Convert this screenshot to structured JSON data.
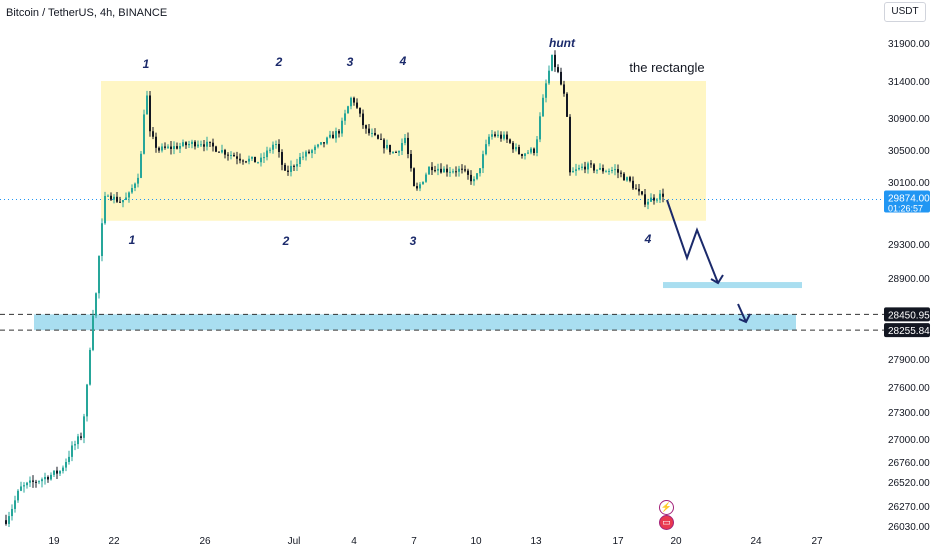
{
  "header": {
    "title": "Bitcoin / TetherUS, 4h, BINANCE",
    "currency": "USDT"
  },
  "icons": {
    "badge_1": "lightning-icon",
    "badge_2": "flag-icon"
  },
  "colors": {
    "up": "#26a69a",
    "rectangle": "#fff6c4",
    "target_zone": "#a9def0",
    "projection_arrow": "#1b2a6b",
    "current_price_tag": "#2196f3",
    "level_tag": "#131722"
  },
  "chart_data": {
    "type": "candlestick",
    "y_ticks": [
      "31900.00",
      "31400.00",
      "30900.00",
      "30500.00",
      "30100.00",
      "29300.00",
      "28900.00",
      "27900.00",
      "27600.00",
      "27300.00",
      "27000.00",
      "26760.00",
      "26520.00",
      "26270.00",
      "26030.00"
    ],
    "x_ticks": [
      "19",
      "22",
      "26",
      "Jul",
      "4",
      "7",
      "10",
      "13",
      "17",
      "20",
      "24",
      "27"
    ],
    "current_price": "29874.00",
    "countdown": "01:26:57",
    "levels": [
      "28450.95",
      "28255.84"
    ],
    "rectangle_label": "the rectangle",
    "hunt_label": "hunt",
    "top_labels": [
      "1",
      "2",
      "3",
      "4"
    ],
    "bottom_labels": [
      "1",
      "2",
      "3",
      "4"
    ],
    "annotations": {
      "rectangle_range": [
        29600,
        31400
      ],
      "upper_target_zone": [
        28800,
        28850
      ],
      "lower_target_zone": [
        28255.84,
        28450.95
      ]
    }
  }
}
